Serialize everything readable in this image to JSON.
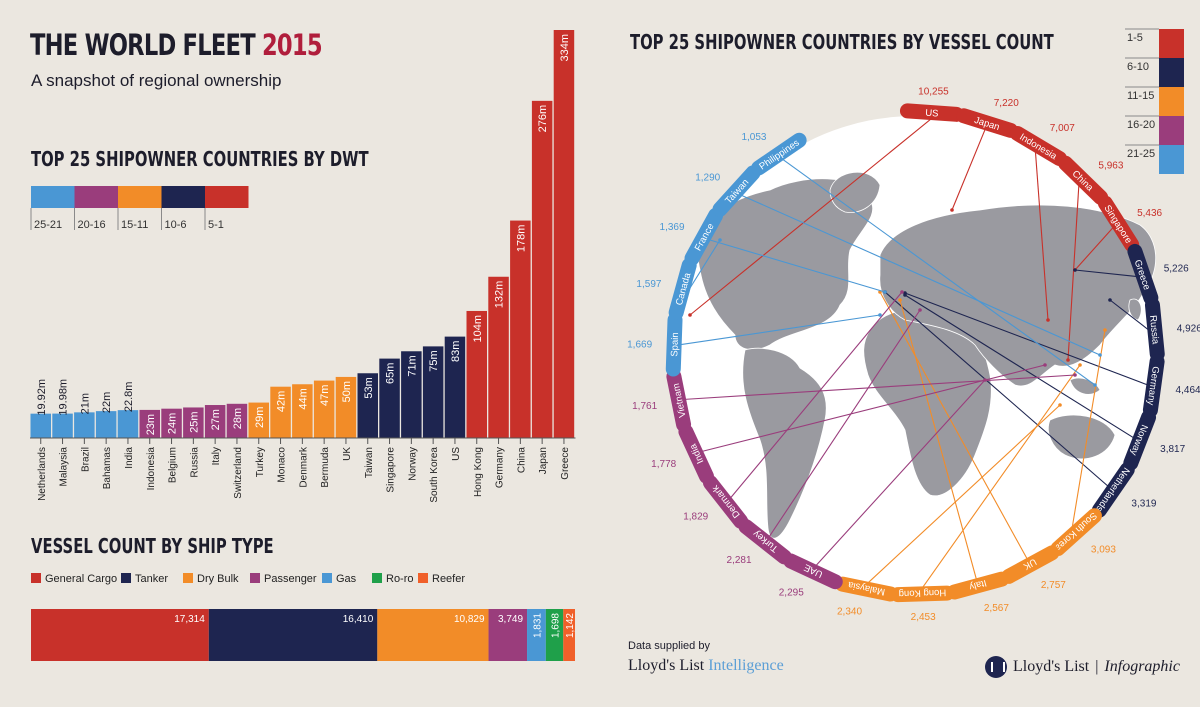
{
  "header": {
    "title_main": "THE WORLD FLEET ",
    "title_year": "2015",
    "subtitle": "A snapshot of regional ownership"
  },
  "colors": {
    "band_1_5": "#c8312a",
    "band_6_10": "#1e2550",
    "band_11_15": "#f28c28",
    "band_16_20": "#9a3d7c",
    "band_21_25": "#4a97d4",
    "map_land": "#9a9aa0",
    "globe_bg": "#ffffff"
  },
  "dwt": {
    "heading": "TOP 25 SHIPOWNER COUNTRIES BY DWT",
    "legend": [
      "25-21",
      "20-16",
      "15-11",
      "10-6",
      "5-1"
    ]
  },
  "types": {
    "heading": "VESSEL COUNT BY SHIP TYPE"
  },
  "vessels": {
    "heading": "TOP 25 SHIPOWNER COUNTRIES BY VESSEL COUNT",
    "legend": [
      "1-5",
      "6-10",
      "11-15",
      "16-20",
      "21-25"
    ]
  },
  "footer": {
    "supplied_by": "Data supplied by",
    "brand_a": "Lloyd's List ",
    "brand_b": "Intelligence",
    "brand2_a": "Lloyd's List",
    "brand2_sep": "|",
    "brand2_b": "Infographic"
  },
  "chart_data": [
    {
      "type": "bar",
      "title": "TOP 25 SHIPOWNER COUNTRIES BY DWT",
      "categories": [
        "Netherlands",
        "Malaysia",
        "Brazil",
        "Bahamas",
        "India",
        "Indonesia",
        "Belgium",
        "Russia",
        "Italy",
        "Switzerland",
        "Turkey",
        "Monaco",
        "Denmark",
        "Bermuda",
        "UK",
        "Taiwan",
        "Singapore",
        "Norway",
        "South Korea",
        "US",
        "Hong Kong",
        "Germany",
        "China",
        "Japan",
        "Greece"
      ],
      "values": [
        19.92,
        19.98,
        21,
        22,
        22.8,
        23,
        24,
        25,
        27,
        28,
        29,
        42,
        44,
        47,
        50,
        53,
        65,
        71,
        75,
        83,
        104,
        132,
        178,
        276,
        334
      ],
      "labels": [
        "19.92m",
        "19.98m",
        "21m",
        "22m",
        "22.8m",
        "23m",
        "24m",
        "25m",
        "27m",
        "28m",
        "29m",
        "42m",
        "44m",
        "47m",
        "50m",
        "53m",
        "65m",
        "71m",
        "75m",
        "83m",
        "104m",
        "132m",
        "178m",
        "276m",
        "334m"
      ],
      "band": [
        "21-25",
        "21-25",
        "21-25",
        "21-25",
        "21-25",
        "16-20",
        "16-20",
        "16-20",
        "16-20",
        "16-20",
        "11-15",
        "11-15",
        "11-15",
        "11-15",
        "11-15",
        "6-10",
        "6-10",
        "6-10",
        "6-10",
        "6-10",
        "1-5",
        "1-5",
        "1-5",
        "1-5",
        "1-5"
      ],
      "unit": "m dwt"
    },
    {
      "type": "bar",
      "orientation": "stacked-horizontal",
      "title": "VESSEL COUNT BY SHIP TYPE",
      "categories": [
        "General Cargo",
        "Tanker",
        "Dry Bulk",
        "Passenger",
        "Gas",
        "Ro-ro",
        "Reefer"
      ],
      "values": [
        17314,
        16410,
        10829,
        3749,
        1831,
        1698,
        1142
      ],
      "labels": [
        "17,314",
        "16,410",
        "10,829",
        "3,749",
        "1,831",
        "1,698",
        "1,142"
      ],
      "colors": [
        "#c8312a",
        "#1e2550",
        "#f28c28",
        "#9a3d7c",
        "#4a97d4",
        "#1fa04a",
        "#f0602a"
      ]
    },
    {
      "type": "pie",
      "title": "TOP 25 SHIPOWNER COUNTRIES BY VESSEL COUNT",
      "categories": [
        "US",
        "Japan",
        "Indonesia",
        "China",
        "Singapore",
        "Greece",
        "Russia",
        "Germany",
        "Norway",
        "Netherlands",
        "South Korea",
        "UK",
        "Italy",
        "Hong Kong",
        "Malaysia",
        "UAE",
        "Turkey",
        "Denmark",
        "India",
        "Vietnam",
        "Spain",
        "Canada",
        "France",
        "Taiwan",
        "Philippines"
      ],
      "values": [
        10255,
        7220,
        7007,
        5963,
        5436,
        5226,
        4926,
        4464,
        3817,
        3319,
        3093,
        2757,
        2567,
        2453,
        2340,
        2295,
        2281,
        1829,
        1778,
        1761,
        1669,
        1597,
        1369,
        1290,
        1053
      ],
      "labels": [
        "10,255",
        "7,220",
        "7,007",
        "5,963",
        "5,436",
        "5,226",
        "4,926",
        "4,464",
        "3,817",
        "3,319",
        "3,093",
        "2,757",
        "2,567",
        "2,453",
        "2,340",
        "2,295",
        "2,281",
        "1,829",
        "1,778",
        "1,761",
        "1,669",
        "1,597",
        "1,369",
        "1,290",
        "1,053"
      ],
      "band": [
        "1-5",
        "1-5",
        "1-5",
        "1-5",
        "1-5",
        "6-10",
        "6-10",
        "6-10",
        "6-10",
        "6-10",
        "11-15",
        "11-15",
        "11-15",
        "11-15",
        "11-15",
        "16-20",
        "16-20",
        "16-20",
        "16-20",
        "16-20",
        "21-25",
        "21-25",
        "21-25",
        "21-25",
        "21-25"
      ]
    }
  ]
}
